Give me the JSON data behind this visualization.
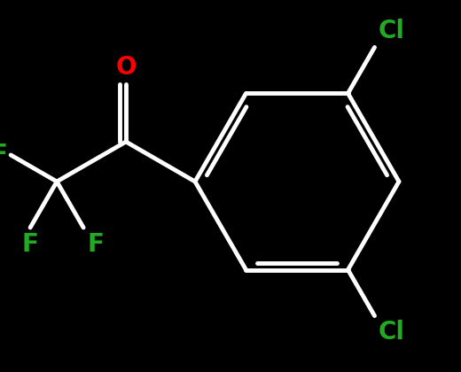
{
  "bg_color": "#000000",
  "bond_color": "#ffffff",
  "bond_width": 3.5,
  "atom_colors": {
    "O": "#ff0000",
    "F": "#22aa22",
    "Cl": "#22aa22"
  },
  "font_size_atom": 20,
  "font_size_cl": 20
}
